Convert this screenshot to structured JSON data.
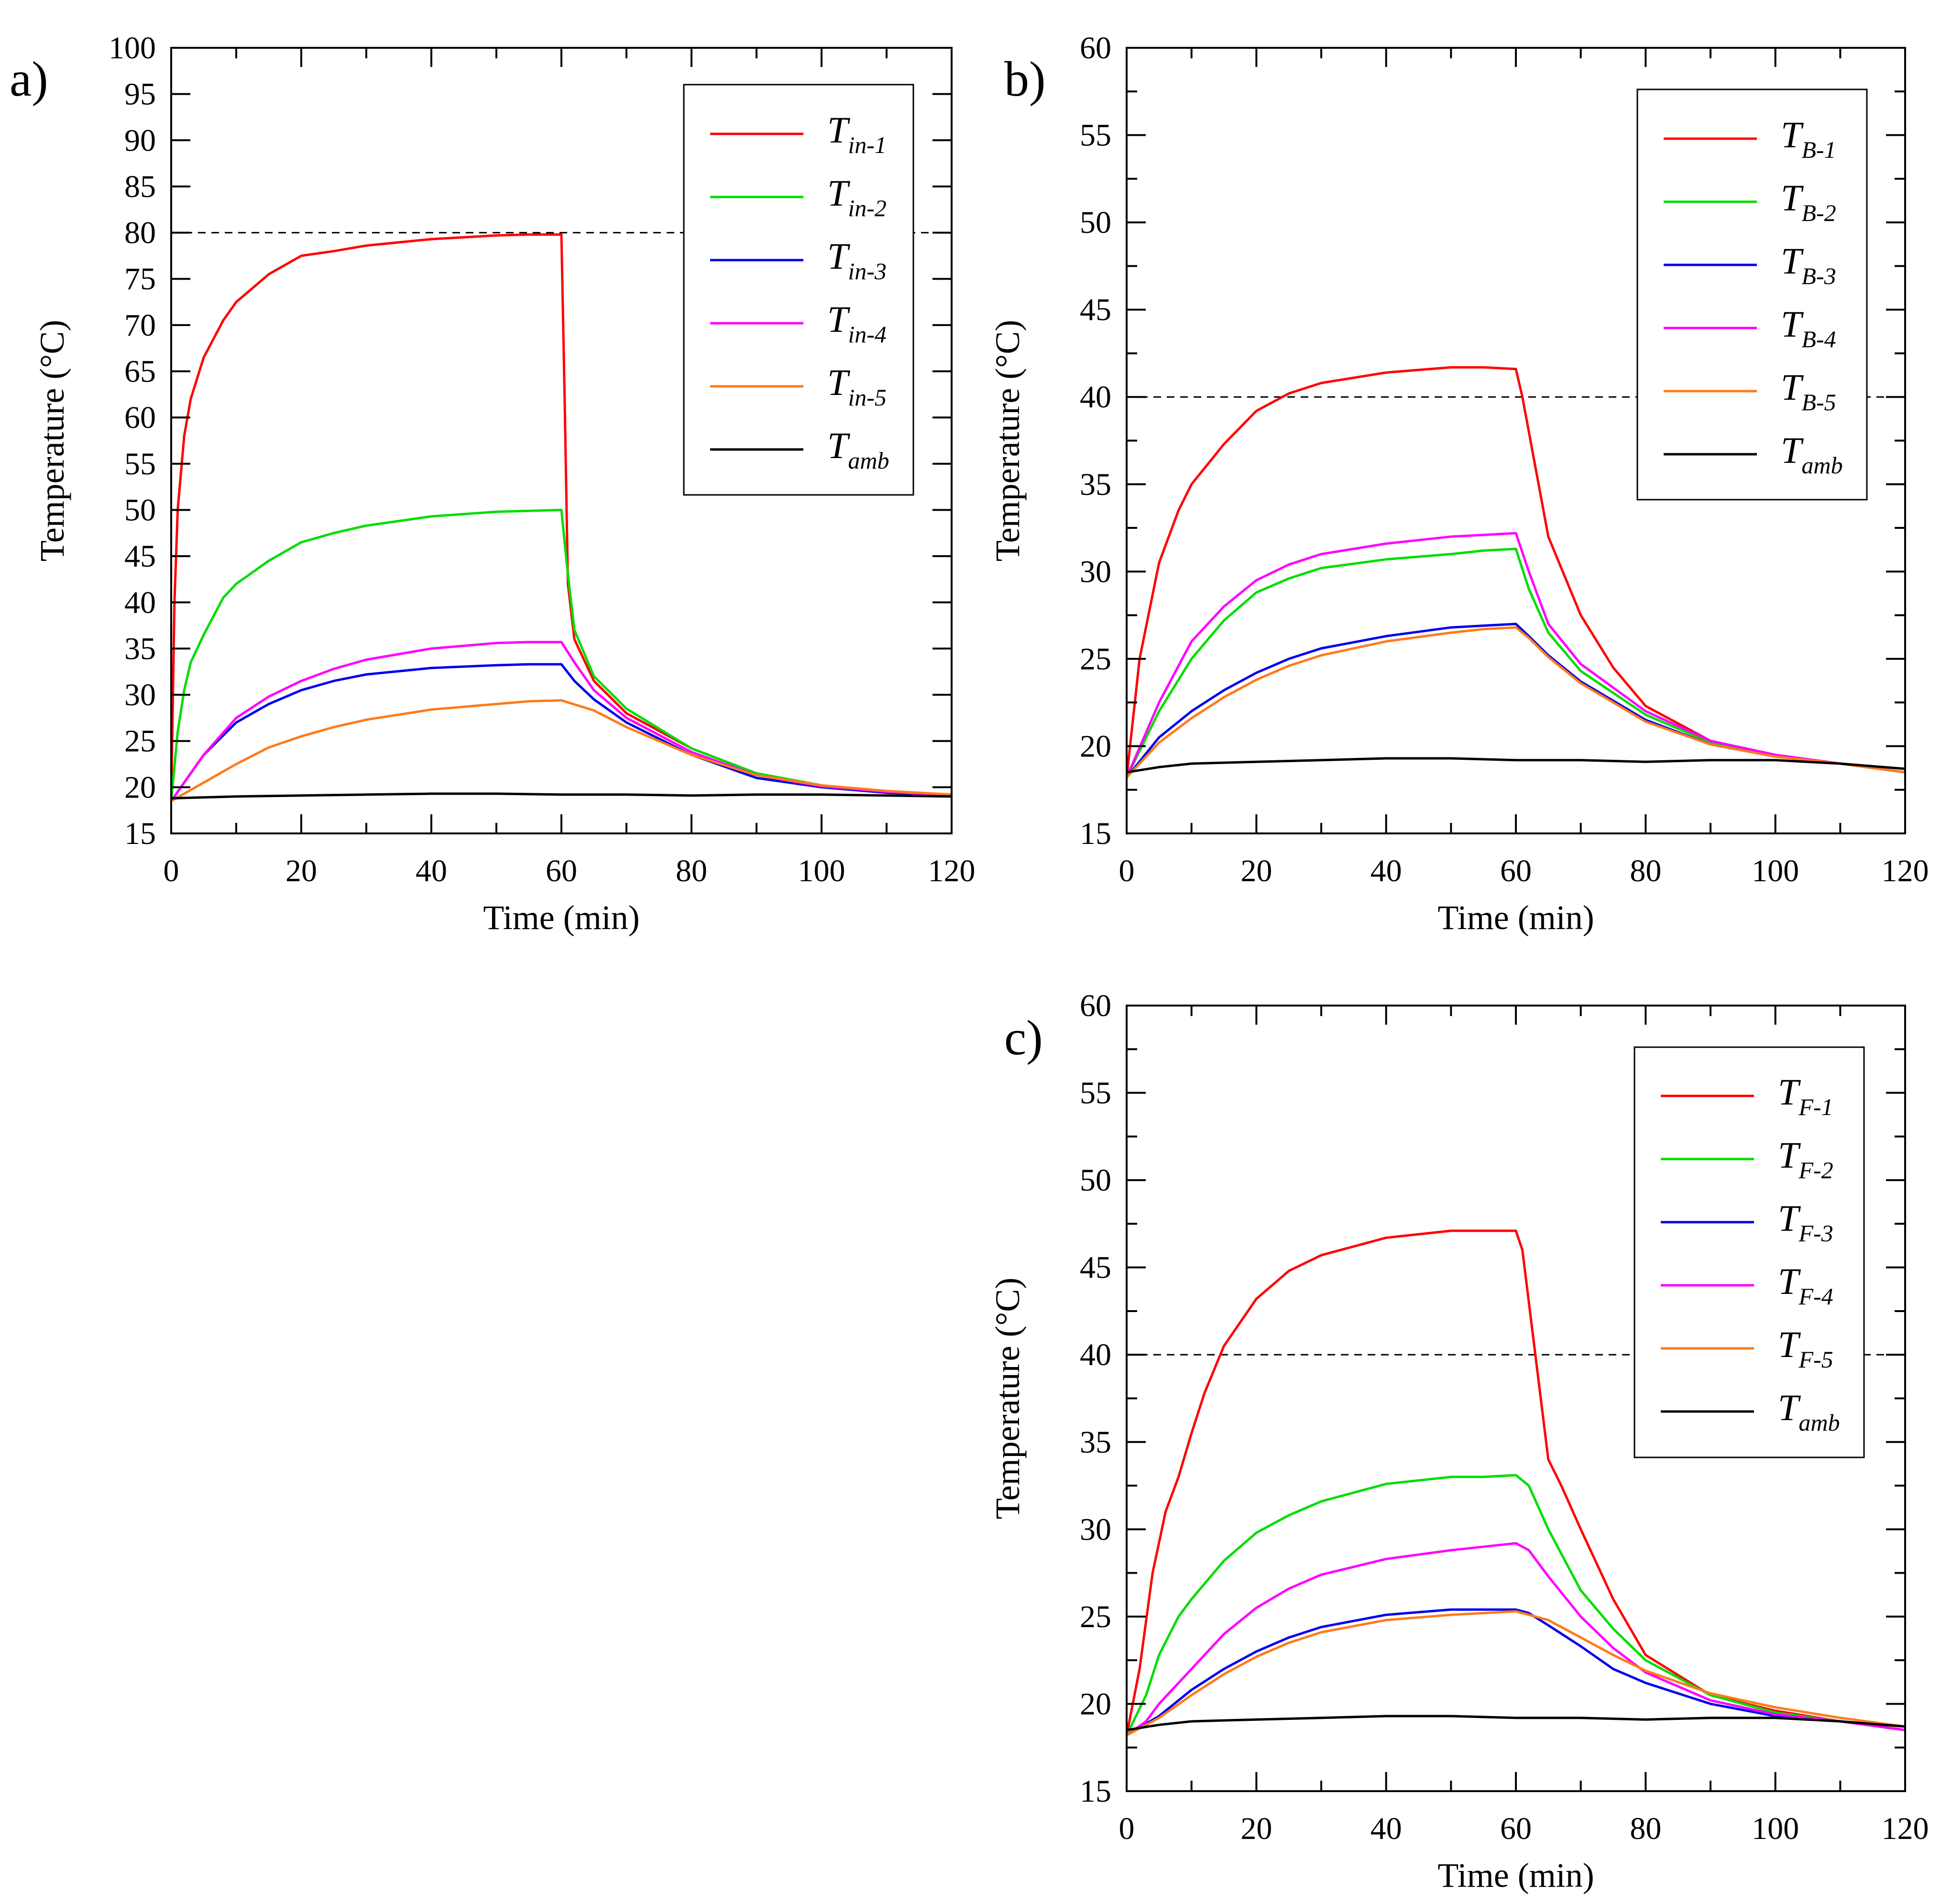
{
  "figure": {
    "chart_data": [
      {
        "panel": "a)",
        "type": "line",
        "xlabel": "Time (min)",
        "ylabel": "Temperature (°C)",
        "xlim": [
          0,
          120
        ],
        "ylim": [
          15,
          100
        ],
        "xticks": [
          0,
          20,
          40,
          60,
          80,
          100,
          120
        ],
        "yticks": [
          15,
          20,
          25,
          30,
          35,
          40,
          45,
          50,
          55,
          60,
          65,
          70,
          75,
          80,
          85,
          90,
          95,
          100
        ],
        "reference_line": 80,
        "legend_position": "top-right",
        "series": [
          {
            "name": "T",
            "sub": "in-1",
            "color": "#ff0000",
            "x": [
              0,
              0.5,
              1,
              2,
              3,
              5,
              8,
              10,
              15,
              20,
              25,
              30,
              40,
              50,
              55,
              60,
              60.5,
              61,
              62,
              65,
              70,
              80,
              90,
              100,
              110,
              120
            ],
            "y": [
              18.5,
              40,
              50,
              58,
              62,
              66.5,
              70.5,
              72.5,
              75.5,
              77.5,
              78,
              78.6,
              79.3,
              79.7,
              79.8,
              79.8,
              62,
              42,
              36,
              31.5,
              28,
              24.2,
              21.5,
              20.2,
              19.5,
              19.2
            ]
          },
          {
            "name": "T",
            "sub": "in-2",
            "color": "#00dd00",
            "x": [
              0,
              1,
              2,
              3,
              5,
              8,
              10,
              15,
              20,
              25,
              30,
              40,
              50,
              55,
              60,
              61,
              62,
              65,
              70,
              80,
              90,
              100,
              110,
              120
            ],
            "y": [
              18.5,
              26,
              30.5,
              33.5,
              36.5,
              40.5,
              42,
              44.5,
              46.5,
              47.5,
              48.3,
              49.3,
              49.8,
              49.9,
              50,
              43,
              37,
              32,
              28.5,
              24.2,
              21.5,
              20.2,
              19.5,
              19.2
            ]
          },
          {
            "name": "T",
            "sub": "in-3",
            "color": "#0000ee",
            "x": [
              0,
              5,
              10,
              15,
              20,
              25,
              30,
              40,
              50,
              55,
              60,
              62,
              65,
              70,
              80,
              90,
              100,
              110,
              120
            ],
            "y": [
              18.5,
              23.5,
              27,
              29,
              30.5,
              31.5,
              32.2,
              32.9,
              33.2,
              33.3,
              33.3,
              31.5,
              29.5,
              27,
              23.5,
              21,
              20,
              19.4,
              19.1
            ]
          },
          {
            "name": "T",
            "sub": "in-4",
            "color": "#ff00ff",
            "x": [
              0,
              5,
              10,
              15,
              20,
              25,
              30,
              40,
              50,
              55,
              60,
              62,
              65,
              70,
              80,
              90,
              100,
              110,
              120
            ],
            "y": [
              18.5,
              23.5,
              27.5,
              29.8,
              31.5,
              32.8,
              33.8,
              35,
              35.6,
              35.7,
              35.7,
              33.5,
              30.5,
              27.5,
              23.8,
              21.3,
              20.1,
              19.5,
              19.1
            ]
          },
          {
            "name": "T",
            "sub": "in-5",
            "color": "#ff7a1a",
            "x": [
              0,
              5,
              10,
              15,
              20,
              25,
              30,
              40,
              50,
              55,
              60,
              65,
              70,
              80,
              90,
              100,
              110,
              120
            ],
            "y": [
              18.5,
              20.5,
              22.5,
              24.3,
              25.5,
              26.5,
              27.3,
              28.4,
              29,
              29.3,
              29.4,
              28.3,
              26.5,
              23.5,
              21.3,
              20.2,
              19.6,
              19.2
            ]
          },
          {
            "name": "T",
            "sub": "amb",
            "color": "#000000",
            "x": [
              0,
              10,
              20,
              30,
              40,
              50,
              60,
              70,
              80,
              90,
              100,
              110,
              120
            ],
            "y": [
              18.8,
              19,
              19.1,
              19.2,
              19.3,
              19.3,
              19.2,
              19.2,
              19.1,
              19.2,
              19.2,
              19.1,
              19
            ]
          }
        ]
      },
      {
        "panel": "b)",
        "type": "line",
        "xlabel": "Time (min)",
        "ylabel": "Temperature (°C)",
        "xlim": [
          0,
          120
        ],
        "ylim": [
          15,
          60
        ],
        "xticks": [
          0,
          20,
          40,
          60,
          80,
          100,
          120
        ],
        "yticks": [
          15,
          20,
          25,
          30,
          35,
          40,
          45,
          50,
          55,
          60
        ],
        "reference_line": 40,
        "legend_position": "top-right",
        "series": [
          {
            "name": "T",
            "sub": "B-1",
            "color": "#ff0000",
            "x": [
              0,
              2,
              5,
              8,
              10,
              15,
              20,
              25,
              30,
              40,
              50,
              55,
              60,
              61,
              65,
              70,
              75,
              80,
              90,
              100,
              110,
              120
            ],
            "y": [
              18.2,
              25,
              30.5,
              33.5,
              35,
              37.3,
              39.2,
              40.2,
              40.8,
              41.4,
              41.7,
              41.7,
              41.6,
              40,
              32,
              27.5,
              24.5,
              22.3,
              20.3,
              19.5,
              19,
              18.5
            ]
          },
          {
            "name": "T",
            "sub": "B-2",
            "color": "#00dd00",
            "x": [
              0,
              5,
              10,
              15,
              20,
              25,
              30,
              40,
              50,
              55,
              60,
              62,
              65,
              70,
              80,
              90,
              100,
              110,
              120
            ],
            "y": [
              18.2,
              22,
              25,
              27.2,
              28.8,
              29.6,
              30.2,
              30.7,
              31,
              31.2,
              31.3,
              29,
              26.5,
              24.3,
              21.8,
              20.2,
              19.4,
              19,
              18.5
            ]
          },
          {
            "name": "T",
            "sub": "B-3",
            "color": "#0000ee",
            "x": [
              0,
              5,
              10,
              15,
              20,
              25,
              30,
              40,
              50,
              55,
              60,
              62,
              65,
              70,
              80,
              90,
              100,
              110,
              120
            ],
            "y": [
              18.2,
              20.5,
              22,
              23.2,
              24.2,
              25,
              25.6,
              26.3,
              26.8,
              26.9,
              27,
              26.3,
              25.2,
              23.7,
              21.5,
              20.1,
              19.4,
              19,
              18.5
            ]
          },
          {
            "name": "T",
            "sub": "B-4",
            "color": "#ff00ff",
            "x": [
              0,
              5,
              10,
              15,
              20,
              25,
              30,
              40,
              50,
              55,
              60,
              62,
              65,
              70,
              80,
              90,
              100,
              110,
              120
            ],
            "y": [
              18.2,
              22.5,
              26,
              28,
              29.5,
              30.4,
              31,
              31.6,
              32,
              32.1,
              32.2,
              30,
              27,
              24.7,
              22,
              20.3,
              19.5,
              19,
              18.5
            ]
          },
          {
            "name": "T",
            "sub": "B-5",
            "color": "#ff7a1a",
            "x": [
              0,
              5,
              10,
              15,
              20,
              25,
              30,
              40,
              50,
              55,
              60,
              62,
              65,
              70,
              80,
              90,
              100,
              110,
              120
            ],
            "y": [
              18.2,
              20.2,
              21.6,
              22.8,
              23.8,
              24.6,
              25.2,
              26,
              26.5,
              26.7,
              26.8,
              26.2,
              25.1,
              23.6,
              21.4,
              20.1,
              19.4,
              19,
              18.5
            ]
          },
          {
            "name": "T",
            "sub": "amb",
            "color": "#000000",
            "x": [
              0,
              5,
              10,
              20,
              30,
              40,
              50,
              60,
              70,
              80,
              90,
              100,
              110,
              120
            ],
            "y": [
              18.5,
              18.8,
              19,
              19.1,
              19.2,
              19.3,
              19.3,
              19.2,
              19.2,
              19.1,
              19.2,
              19.2,
              19,
              18.7
            ]
          }
        ]
      },
      {
        "panel": "c)",
        "type": "line",
        "xlabel": "Time (min)",
        "ylabel": "Temperature (°C)",
        "xlim": [
          0,
          120
        ],
        "ylim": [
          15,
          60
        ],
        "xticks": [
          0,
          20,
          40,
          60,
          80,
          100,
          120
        ],
        "yticks": [
          15,
          20,
          25,
          30,
          35,
          40,
          45,
          50,
          55,
          60
        ],
        "reference_line": 40,
        "legend_position": "top-right",
        "series": [
          {
            "name": "T",
            "sub": "F-1",
            "color": "#ff0000",
            "x": [
              0,
              2,
              4,
              6,
              8,
              10,
              12,
              15,
              20,
              25,
              30,
              40,
              50,
              55,
              60,
              61,
              63,
              65,
              67,
              70,
              75,
              80,
              90,
              100,
              110,
              120
            ],
            "y": [
              18.2,
              22,
              27.5,
              31,
              33,
              35.5,
              37.8,
              40.5,
              43.2,
              44.8,
              45.7,
              46.7,
              47.1,
              47.1,
              47.1,
              46,
              40,
              34,
              32.5,
              30,
              26,
              22.8,
              20.5,
              19.6,
              19,
              18.5
            ]
          },
          {
            "name": "T",
            "sub": "F-2",
            "color": "#00dd00",
            "x": [
              0,
              3,
              5,
              8,
              10,
              15,
              20,
              25,
              30,
              40,
              50,
              55,
              60,
              62,
              65,
              70,
              75,
              80,
              90,
              100,
              110,
              120
            ],
            "y": [
              18.2,
              20.5,
              22.8,
              25,
              26,
              28.2,
              29.8,
              30.8,
              31.6,
              32.6,
              33,
              33,
              33.1,
              32.5,
              30,
              26.5,
              24.3,
              22.5,
              20.5,
              19.5,
              19,
              18.5
            ]
          },
          {
            "name": "T",
            "sub": "F-3",
            "color": "#0000ee",
            "x": [
              0,
              5,
              10,
              15,
              20,
              25,
              30,
              40,
              50,
              55,
              60,
              62,
              65,
              70,
              75,
              80,
              90,
              100,
              110,
              120
            ],
            "y": [
              18.2,
              19.3,
              20.8,
              22,
              23,
              23.8,
              24.4,
              25.1,
              25.4,
              25.4,
              25.4,
              25.2,
              24.5,
              23.3,
              22,
              21.2,
              20,
              19.3,
              19,
              18.5
            ]
          },
          {
            "name": "T",
            "sub": "F-4",
            "color": "#ff00ff",
            "x": [
              0,
              3,
              5,
              10,
              15,
              20,
              25,
              30,
              40,
              50,
              55,
              60,
              62,
              65,
              70,
              75,
              80,
              90,
              100,
              110,
              120
            ],
            "y": [
              18.2,
              19,
              20,
              22,
              24,
              25.5,
              26.6,
              27.4,
              28.3,
              28.8,
              29,
              29.2,
              28.8,
              27.3,
              25,
              23.2,
              21.8,
              20.2,
              19.4,
              19,
              18.5
            ]
          },
          {
            "name": "T",
            "sub": "F-5",
            "color": "#ff7a1a",
            "x": [
              0,
              5,
              10,
              15,
              20,
              25,
              30,
              40,
              50,
              55,
              60,
              65,
              70,
              75,
              80,
              90,
              100,
              110,
              120
            ],
            "y": [
              18.2,
              19.2,
              20.5,
              21.7,
              22.7,
              23.5,
              24.1,
              24.8,
              25.1,
              25.2,
              25.3,
              24.8,
              23.8,
              22.8,
              21.9,
              20.6,
              19.8,
              19.2,
              18.7
            ]
          },
          {
            "name": "T",
            "sub": "amb",
            "color": "#000000",
            "x": [
              0,
              5,
              10,
              20,
              30,
              40,
              50,
              60,
              70,
              80,
              90,
              100,
              110,
              120
            ],
            "y": [
              18.5,
              18.8,
              19,
              19.1,
              19.2,
              19.3,
              19.3,
              19.2,
              19.2,
              19.1,
              19.2,
              19.2,
              19,
              18.7
            ]
          }
        ]
      }
    ]
  }
}
